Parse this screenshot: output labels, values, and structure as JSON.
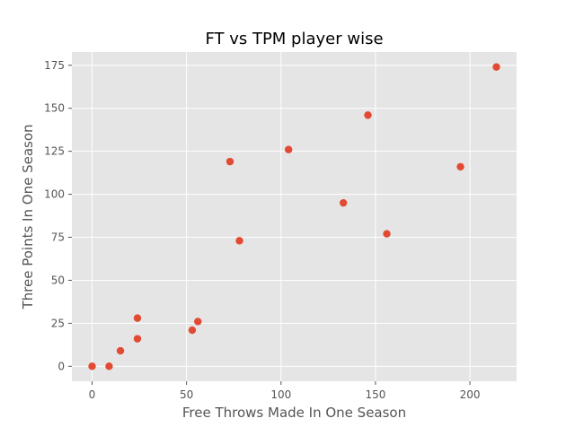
{
  "chart_data": {
    "type": "scatter",
    "title": "FT vs TPM player wise",
    "xlabel": "Free Throws Made In One Season",
    "ylabel": "Three Points In One Season",
    "xlim": [
      -10.7,
      224.7
    ],
    "ylim": [
      -8.7,
      182.7
    ],
    "xticks": [
      0,
      50,
      100,
      150,
      200
    ],
    "yticks": [
      0,
      25,
      50,
      75,
      100,
      125,
      150,
      175
    ],
    "grid": true,
    "colors": {
      "plot_background": "#e5e5e5",
      "point": "#e24a33",
      "grid": "#ffffff",
      "text": "#555555",
      "title": "#000000"
    },
    "points": [
      {
        "x": 0,
        "y": 0
      },
      {
        "x": 9,
        "y": 0
      },
      {
        "x": 15,
        "y": 9
      },
      {
        "x": 24,
        "y": 16
      },
      {
        "x": 24,
        "y": 28
      },
      {
        "x": 53,
        "y": 21
      },
      {
        "x": 56,
        "y": 26
      },
      {
        "x": 73,
        "y": 119
      },
      {
        "x": 78,
        "y": 73
      },
      {
        "x": 104,
        "y": 126
      },
      {
        "x": 133,
        "y": 95
      },
      {
        "x": 146,
        "y": 146
      },
      {
        "x": 156,
        "y": 77
      },
      {
        "x": 195,
        "y": 116
      },
      {
        "x": 214,
        "y": 174
      }
    ]
  }
}
